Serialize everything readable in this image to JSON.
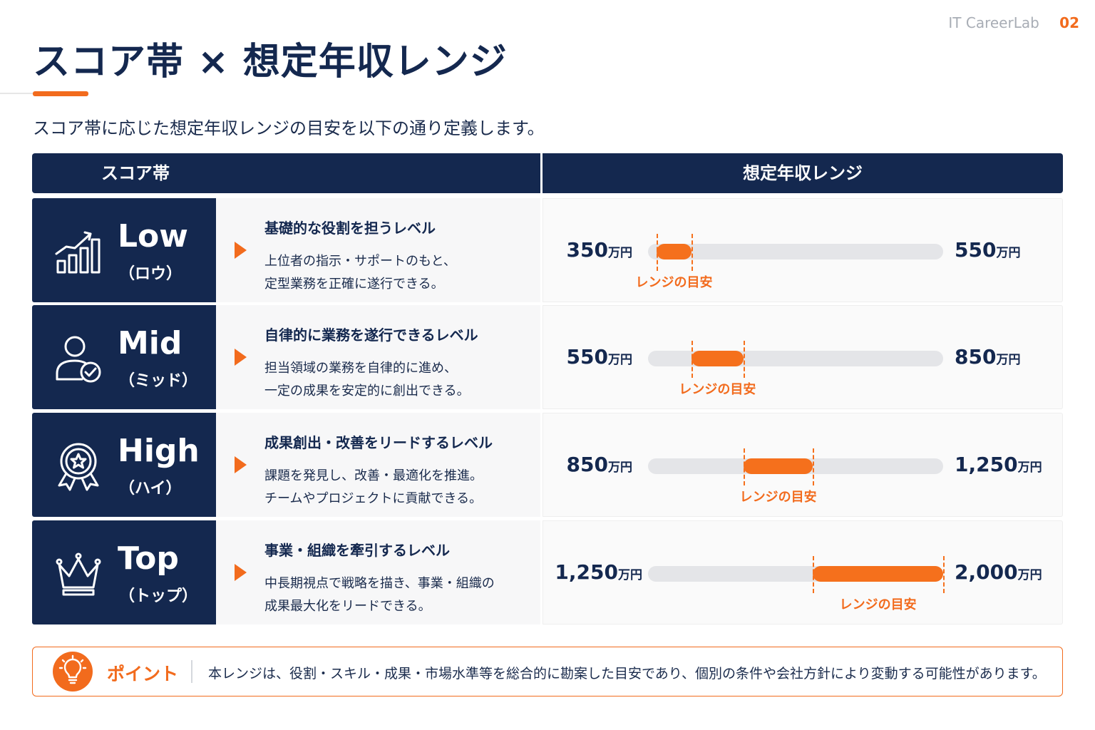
{
  "header": {
    "brand": "IT CareerLab",
    "page_number": "02"
  },
  "title": "スコア帯 × 想定年収レンジ",
  "subtitle": "スコア帯に応じた想定年収レンジの目安を以下の通り定義します。",
  "table": {
    "headers": [
      "スコア帯",
      "想定年収レンジ"
    ],
    "unit": "万円",
    "range_label": "レンジの目安",
    "scale": {
      "track_min": 300,
      "track_max": 2000
    },
    "rows": [
      {
        "level": "Low",
        "reading": "（ロウ）",
        "icon": "growth-chart-icon",
        "heading": "基礎的な役割を担うレベル",
        "line1": "上位者の指示・サポートのもと、",
        "line2": "定型業務を正確に遂行できる。",
        "min_label": "350",
        "max_label": "550",
        "min": 350,
        "max": 550
      },
      {
        "level": "Mid",
        "reading": "（ミッド）",
        "icon": "user-check-icon",
        "heading": "自律的に業務を遂行できるレベル",
        "line1": "担当領域の業務を自律的に進め、",
        "line2": "一定の成果を安定的に創出できる。",
        "min_label": "550",
        "max_label": "850",
        "min": 550,
        "max": 850
      },
      {
        "level": "High",
        "reading": "（ハイ）",
        "icon": "award-medal-icon",
        "heading": "成果創出・改善をリードするレベル",
        "line1": "課題を発見し、改善・最適化を推進。",
        "line2": "チームやプロジェクトに貢献できる。",
        "min_label": "850",
        "max_label": "1,250",
        "min": 850,
        "max": 1250
      },
      {
        "level": "Top",
        "reading": "（トップ）",
        "icon": "crown-icon",
        "heading": "事業・組織を牽引するレベル",
        "line1": "中長期視点で戦略を描き、事業・組織の",
        "line2": "成果最大化をリードできる。",
        "min_label": "1,250",
        "max_label": "2,000",
        "min": 1250,
        "max": 2000
      }
    ]
  },
  "note": {
    "title": "ポイント",
    "icon": "lightbulb-icon",
    "text": "本レンジは、役割・スキル・成果・市場水準等を総合的に勘案した目安であり、個別の条件や会社方針により変動する可能性があります。"
  },
  "colors": {
    "navy": "#14284f",
    "accent": "#f26b1d",
    "track": "#e4e5e8"
  }
}
